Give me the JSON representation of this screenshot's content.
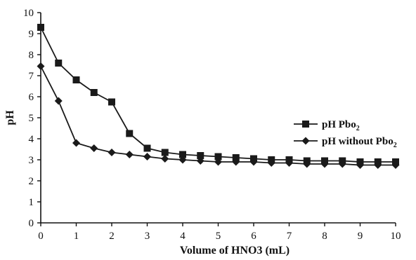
{
  "chart_data": {
    "type": "line",
    "xlabel": "Volume of HNO3 (mL)",
    "ylabel": "pH",
    "xlim": [
      0,
      10
    ],
    "ylim": [
      0,
      10
    ],
    "xticks": [
      "0",
      "1",
      "2",
      "3",
      "4",
      "5",
      "6",
      "7",
      "8",
      "9",
      "10"
    ],
    "yticks": [
      "0",
      "1",
      "2",
      "3",
      "4",
      "5",
      "6",
      "7",
      "8",
      "9",
      "10"
    ],
    "x": [
      0,
      0.5,
      1,
      1.5,
      2,
      2.5,
      3,
      3.5,
      4,
      4.5,
      5,
      5.5,
      6,
      6.5,
      7,
      7.5,
      8,
      8.5,
      9,
      9.5,
      10
    ],
    "grid": false,
    "legend_position": "right",
    "series": [
      {
        "name": "pH  Pbo",
        "name_sub": "2",
        "marker": "square",
        "color": "#1a1a1a",
        "values": [
          9.3,
          7.6,
          6.8,
          6.2,
          5.75,
          4.25,
          3.55,
          3.35,
          3.25,
          3.2,
          3.15,
          3.1,
          3.05,
          3.0,
          3.0,
          2.95,
          2.95,
          2.95,
          2.9,
          2.9,
          2.9
        ]
      },
      {
        "name": "pH without Pbo",
        "name_sub": "2",
        "marker": "diamond",
        "color": "#1a1a1a",
        "values": [
          7.45,
          5.8,
          3.8,
          3.55,
          3.35,
          3.25,
          3.15,
          3.05,
          3.0,
          2.95,
          2.9,
          2.9,
          2.9,
          2.85,
          2.85,
          2.8,
          2.8,
          2.8,
          2.75,
          2.75,
          2.75
        ]
      }
    ]
  }
}
